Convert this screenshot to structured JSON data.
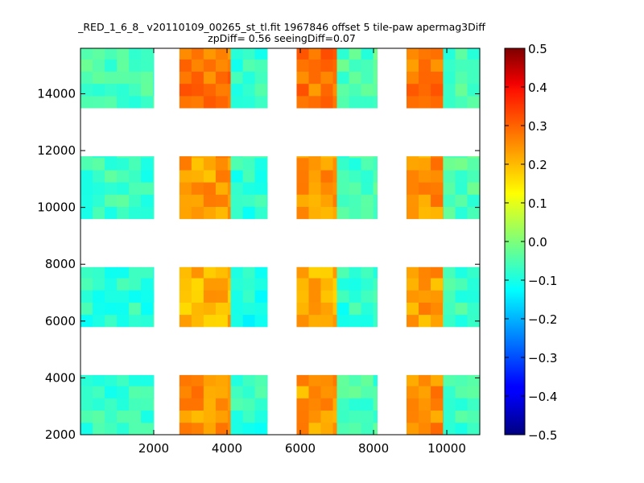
{
  "chart_data": {
    "type": "heatmap",
    "title_lines": [
      "_RED_1_6_8_ v20110109_00265_st_tl.fit 1967846 offset 5 tile-paw apermag3Diff",
      "zpDiff= 0.56 seeingDiff=0.07"
    ],
    "xlim": [
      0,
      10900
    ],
    "ylim": [
      2000,
      15600
    ],
    "xticks": [
      2000,
      4000,
      6000,
      8000,
      10000
    ],
    "yticks": [
      2000,
      4000,
      6000,
      8000,
      10000,
      12000,
      14000
    ],
    "cell_size": [
      330,
      430
    ],
    "colorbar": {
      "colormap": "jet",
      "range": [
        -0.5,
        0.5
      ],
      "ticks": [
        0.5,
        0.4,
        0.3,
        0.2,
        0.1,
        0.0,
        -0.1,
        -0.2,
        -0.3,
        -0.4,
        -0.5
      ],
      "tick_labels": [
        "0.5",
        "0.4",
        "0.3",
        "0.2",
        "0.1",
        "0.0",
        "−0.1",
        "−0.2",
        "−0.3",
        "−0.4",
        "−0.5"
      ]
    },
    "blocks": [
      {
        "x0": 0,
        "x1": 2000,
        "y0": 13500,
        "y1": 15600,
        "value": -0.06
      },
      {
        "x0": 2700,
        "x1": 4100,
        "y0": 13500,
        "y1": 15600,
        "value": 0.26
      },
      {
        "x0": 4100,
        "x1": 5100,
        "y0": 13500,
        "y1": 15600,
        "value": -0.07
      },
      {
        "x0": 5900,
        "x1": 7000,
        "y0": 13500,
        "y1": 15600,
        "value": 0.26
      },
      {
        "x0": 7000,
        "x1": 8100,
        "y0": 13500,
        "y1": 15600,
        "value": -0.05
      },
      {
        "x0": 8900,
        "x1": 9900,
        "y0": 13500,
        "y1": 15600,
        "value": 0.26
      },
      {
        "x0": 9900,
        "x1": 10900,
        "y0": 13500,
        "y1": 15600,
        "value": -0.06
      },
      {
        "x0": 0,
        "x1": 2000,
        "y0": 9600,
        "y1": 11800,
        "value": -0.07
      },
      {
        "x0": 2700,
        "x1": 4100,
        "y0": 9600,
        "y1": 11800,
        "value": 0.22
      },
      {
        "x0": 4100,
        "x1": 5100,
        "y0": 9600,
        "y1": 11800,
        "value": -0.08
      },
      {
        "x0": 5900,
        "x1": 7000,
        "y0": 9600,
        "y1": 11800,
        "value": 0.23
      },
      {
        "x0": 7000,
        "x1": 8100,
        "y0": 9600,
        "y1": 11800,
        "value": -0.06
      },
      {
        "x0": 8900,
        "x1": 9900,
        "y0": 9600,
        "y1": 11800,
        "value": 0.23
      },
      {
        "x0": 9900,
        "x1": 10900,
        "y0": 9600,
        "y1": 11800,
        "value": -0.05
      },
      {
        "x0": 0,
        "x1": 2000,
        "y0": 5800,
        "y1": 7900,
        "value": -0.08
      },
      {
        "x0": 2700,
        "x1": 4100,
        "y0": 5800,
        "y1": 7900,
        "value": 0.2
      },
      {
        "x0": 4100,
        "x1": 5100,
        "y0": 5800,
        "y1": 7900,
        "value": -0.1
      },
      {
        "x0": 5900,
        "x1": 7000,
        "y0": 5800,
        "y1": 7900,
        "value": 0.2
      },
      {
        "x0": 7000,
        "x1": 8100,
        "y0": 5800,
        "y1": 7900,
        "value": -0.08
      },
      {
        "x0": 8900,
        "x1": 9900,
        "y0": 5800,
        "y1": 7900,
        "value": 0.22
      },
      {
        "x0": 9900,
        "x1": 10900,
        "y0": 5800,
        "y1": 7900,
        "value": -0.06
      },
      {
        "x0": 0,
        "x1": 2000,
        "y0": 2000,
        "y1": 4100,
        "value": -0.07
      },
      {
        "x0": 2700,
        "x1": 4100,
        "y0": 2000,
        "y1": 4100,
        "value": 0.23
      },
      {
        "x0": 4100,
        "x1": 5100,
        "y0": 2000,
        "y1": 4100,
        "value": -0.08
      },
      {
        "x0": 5900,
        "x1": 7000,
        "y0": 2000,
        "y1": 4100,
        "value": 0.22
      },
      {
        "x0": 7000,
        "x1": 8100,
        "y0": 2000,
        "y1": 4100,
        "value": -0.06
      },
      {
        "x0": 8900,
        "x1": 9900,
        "y0": 2000,
        "y1": 4100,
        "value": 0.24
      },
      {
        "x0": 9900,
        "x1": 10900,
        "y0": 2000,
        "y1": 4100,
        "value": -0.07
      }
    ]
  }
}
